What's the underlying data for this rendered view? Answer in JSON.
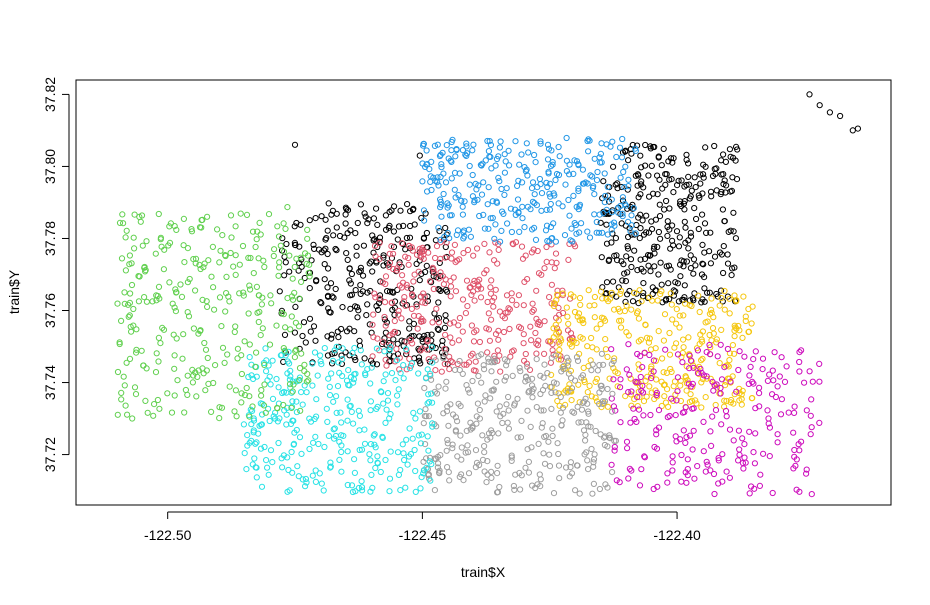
{
  "chart_data": {
    "type": "scatter",
    "title": "",
    "xlabel": "train$X",
    "ylabel": "train$Y",
    "xlim": [
      -122.518,
      -122.358
    ],
    "ylim": [
      37.706,
      37.824
    ],
    "x_ticks": [
      -122.5,
      -122.45,
      -122.4
    ],
    "x_tick_labels": [
      "-122.50",
      "-122.45",
      "-122.40"
    ],
    "y_ticks": [
      37.72,
      37.74,
      37.76,
      37.78,
      37.8,
      37.82
    ],
    "y_tick_labels": [
      "37.72",
      "37.74",
      "37.76",
      "37.78",
      "37.80",
      "37.82"
    ],
    "grid": false,
    "legend": "none",
    "marker": "open-circle",
    "clusters": [
      {
        "color": "#000000",
        "x_range": [
          -122.478,
          -122.445
        ],
        "y_range": [
          37.745,
          37.79
        ],
        "density": "high"
      },
      {
        "color": "#000000",
        "x_range": [
          -122.415,
          -122.388
        ],
        "y_range": [
          37.762,
          37.806
        ],
        "density": "high"
      },
      {
        "color": "#DF536B",
        "x_range": [
          -122.46,
          -122.42
        ],
        "y_range": [
          37.743,
          37.779
        ],
        "density": "high"
      },
      {
        "color": "#2297E6",
        "x_range": [
          -122.45,
          -122.408
        ],
        "y_range": [
          37.779,
          37.808
        ],
        "density": "high"
      },
      {
        "color": "#F5C710",
        "x_range": [
          -122.425,
          -122.385
        ],
        "y_range": [
          37.733,
          37.766
        ],
        "density": "high"
      },
      {
        "color": "#CD0BBC",
        "x_range": [
          -122.413,
          -122.372
        ],
        "y_range": [
          37.709,
          37.751
        ],
        "density": "medium"
      },
      {
        "color": "#9E9E9E",
        "x_range": [
          -122.45,
          -122.412
        ],
        "y_range": [
          37.709,
          37.748
        ],
        "density": "high"
      },
      {
        "color": "#28E2E5",
        "x_range": [
          -122.486,
          -122.448
        ],
        "y_range": [
          37.709,
          37.75
        ],
        "density": "high"
      },
      {
        "color": "#61D04F",
        "x_range": [
          -122.51,
          -122.472
        ],
        "y_range": [
          37.73,
          37.789
        ],
        "density": "high"
      }
    ],
    "outliers": [
      {
        "x": -122.475,
        "y": 37.806,
        "color": "#000000"
      },
      {
        "x": -122.4505,
        "y": 37.803,
        "color": "#000000"
      },
      {
        "x": -122.374,
        "y": 37.82,
        "color": "#000000"
      },
      {
        "x": -122.372,
        "y": 37.817,
        "color": "#000000"
      },
      {
        "x": -122.37,
        "y": 37.815,
        "color": "#000000"
      },
      {
        "x": -122.368,
        "y": 37.814,
        "color": "#000000"
      },
      {
        "x": -122.3655,
        "y": 37.81,
        "color": "#000000"
      },
      {
        "x": -122.3645,
        "y": 37.8105,
        "color": "#000000"
      }
    ]
  }
}
